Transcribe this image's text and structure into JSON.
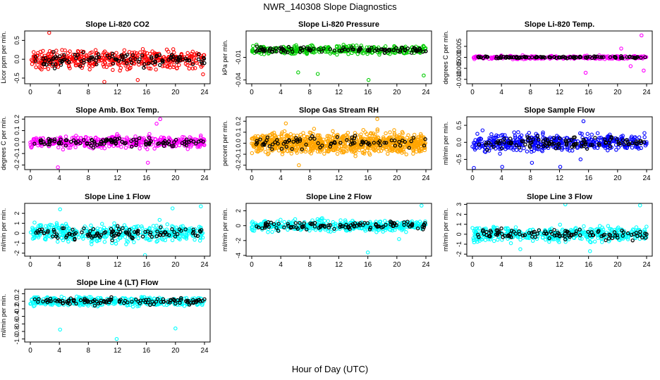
{
  "figure": {
    "title": "NWR_140308  Slope Diagnostics",
    "xlabel": "Hour of Day (UTC)"
  },
  "chart_data": [
    {
      "type": "scatter",
      "title": "Slope Li-820 CO2",
      "ylabel": "Licor ppm per min.",
      "color": "#ff0000",
      "xlim": [
        0,
        24
      ],
      "xticks": [
        0,
        4,
        8,
        12,
        16,
        20,
        24
      ],
      "ylim": [
        -0.65,
        0.75
      ],
      "yticks": [
        -0.5,
        0.0,
        0.5
      ],
      "yticklabels": [
        "-0.5",
        "0.0",
        "0.5"
      ],
      "spread": 0.22,
      "n_color": 420,
      "n_black": 110,
      "outliers": [
        {
          "x": 2.6,
          "y": 0.7
        },
        {
          "x": 10.2,
          "y": -0.6
        },
        {
          "x": 14.8,
          "y": -0.55
        },
        {
          "x": 23.8,
          "y": -0.4
        }
      ]
    },
    {
      "type": "scatter",
      "title": "Slope Li-820 Pressure",
      "ylabel": "kPa per min.",
      "color": "#00cc00",
      "xlim": [
        0,
        24
      ],
      "xticks": [
        0,
        4,
        8,
        12,
        16,
        20,
        24
      ],
      "ylim": [
        -0.045,
        0.025
      ],
      "yticks": [
        -0.04,
        -0.01
      ],
      "yticklabels": [
        "-0.04",
        "-0.01"
      ],
      "spread": 0.005,
      "n_color": 330,
      "n_black": 110,
      "outliers": [
        {
          "x": 6.4,
          "y": -0.03
        },
        {
          "x": 9.1,
          "y": -0.032
        },
        {
          "x": 16.1,
          "y": -0.04
        },
        {
          "x": 23.7,
          "y": -0.034
        },
        {
          "x": 2.3,
          "y": -0.005
        }
      ]
    },
    {
      "type": "scatter",
      "title": "Slope Li-820 Temp.",
      "ylabel": "degrees C per min.",
      "color": "#ff00ff",
      "xlim": [
        0,
        24
      ],
      "xticks": [
        0,
        4,
        8,
        12,
        16,
        20,
        24
      ],
      "ylim": [
        -0.012,
        0.012
      ],
      "yticks": [
        -0.01,
        -0.005,
        0.0,
        0.005
      ],
      "yticklabels": [
        "-0.010",
        "-0.005",
        "0.000",
        "0.005"
      ],
      "spread": 0.0006,
      "n_color": 320,
      "n_black": 110,
      "outliers": [
        {
          "x": 15.6,
          "y": -0.007
        },
        {
          "x": 23.3,
          "y": 0.01
        },
        {
          "x": 23.6,
          "y": -0.006
        },
        {
          "x": 20.5,
          "y": 0.004
        },
        {
          "x": 21.8,
          "y": -0.004
        }
      ]
    },
    {
      "type": "scatter",
      "title": "Slope Amb. Box Temp.",
      "ylabel": "degrees C per min.",
      "color": "#ff00ff",
      "xlim": [
        0,
        24
      ],
      "xticks": [
        0,
        4,
        8,
        12,
        16,
        20,
        24
      ],
      "ylim": [
        -0.24,
        0.22
      ],
      "yticks": [
        -0.2,
        -0.1,
        0.0,
        0.1,
        0.2
      ],
      "yticklabels": [
        "-0.2",
        "-0.1",
        "0.0",
        "0.1",
        "0.2"
      ],
      "spread": 0.045,
      "n_color": 420,
      "n_black": 110,
      "outliers": [
        {
          "x": 3.8,
          "y": -0.22
        },
        {
          "x": 17.9,
          "y": 0.2
        },
        {
          "x": 16.2,
          "y": -0.18
        },
        {
          "x": 17.4,
          "y": 0.16
        }
      ]
    },
    {
      "type": "scatter",
      "title": "Slope Gas Stream RH",
      "ylabel": "percent per min.",
      "color": "#ffa500",
      "xlim": [
        0,
        24
      ],
      "xticks": [
        0,
        4,
        8,
        12,
        16,
        20,
        24
      ],
      "ylim": [
        -0.24,
        0.24
      ],
      "yticks": [
        -0.2,
        -0.1,
        0.0,
        0.1,
        0.2
      ],
      "yticklabels": [
        "-0.2",
        "-0.1",
        "0.0",
        "0.1",
        "0.2"
      ],
      "spread": 0.08,
      "n_color": 900,
      "n_black": 80,
      "outliers": [
        {
          "x": 6.5,
          "y": -0.2
        },
        {
          "x": 17.3,
          "y": 0.22
        },
        {
          "x": 4.7,
          "y": 0.18
        }
      ]
    },
    {
      "type": "scatter",
      "title": "Slope Sample Flow",
      "ylabel": "ml/min per min.",
      "color": "#0000ff",
      "xlim": [
        0,
        24
      ],
      "xticks": [
        0,
        4,
        8,
        12,
        16,
        20,
        24
      ],
      "ylim": [
        -0.8,
        0.75
      ],
      "yticks": [
        -0.5,
        0.0,
        0.5
      ],
      "yticklabels": [
        "-0.5",
        "0.0",
        "0.5"
      ],
      "spread": 0.22,
      "n_color": 430,
      "n_black": 110,
      "outliers": [
        {
          "x": 0.2,
          "y": -0.75
        },
        {
          "x": 4.1,
          "y": -0.72
        },
        {
          "x": 8.2,
          "y": -0.6
        },
        {
          "x": 12.1,
          "y": -0.72
        },
        {
          "x": 15.3,
          "y": 0.62
        },
        {
          "x": 14.9,
          "y": -0.5
        }
      ]
    },
    {
      "type": "scatter",
      "title": "Slope Line 1 Flow",
      "ylabel": "ml/min per min.",
      "color": "#00ffff",
      "xlim": [
        0,
        24
      ],
      "xticks": [
        0,
        4,
        8,
        12,
        16,
        20,
        24
      ],
      "ylim": [
        -2.3,
        3.0
      ],
      "yticks": [
        -2,
        -1,
        0,
        1,
        2
      ],
      "yticklabels": [
        "-2",
        "-1",
        "0",
        "1",
        "2"
      ],
      "spread": 0.8,
      "n_color": 420,
      "n_black": 110,
      "outliers": [
        {
          "x": 15.8,
          "y": -2.2
        },
        {
          "x": 23.5,
          "y": 2.7
        },
        {
          "x": 4.1,
          "y": 2.4
        },
        {
          "x": 19.6,
          "y": 2.5
        }
      ]
    },
    {
      "type": "scatter",
      "title": "Slope Line 2 Flow",
      "ylabel": "ml/min per min.",
      "color": "#00ffff",
      "xlim": [
        0,
        24
      ],
      "xticks": [
        0,
        4,
        8,
        12,
        16,
        20,
        24
      ],
      "ylim": [
        -4.1,
        3.0
      ],
      "yticks": [
        -4,
        -2,
        0,
        2
      ],
      "yticklabels": [
        "-4",
        "-2",
        "0",
        "2"
      ],
      "spread": 0.65,
      "n_color": 420,
      "n_black": 110,
      "outliers": [
        {
          "x": 16.0,
          "y": -3.6
        },
        {
          "x": 23.4,
          "y": 2.7
        },
        {
          "x": 20.3,
          "y": -1.8
        }
      ]
    },
    {
      "type": "scatter",
      "title": "Slope Line 3 Flow",
      "ylabel": "ml/min per min.",
      "color": "#00ffff",
      "xlim": [
        0,
        24
      ],
      "xticks": [
        0,
        4,
        8,
        12,
        16,
        20,
        24
      ],
      "ylim": [
        -2.2,
        3.1
      ],
      "yticks": [
        -2,
        -1,
        0,
        1,
        2,
        3
      ],
      "yticklabels": [
        "-2",
        "-1",
        "0",
        "1",
        "2",
        "3"
      ],
      "spread": 0.65,
      "n_color": 420,
      "n_black": 110,
      "outliers": [
        {
          "x": 12.8,
          "y": 3.0
        },
        {
          "x": 23.1,
          "y": 2.9
        },
        {
          "x": 16.2,
          "y": -1.7
        },
        {
          "x": 6.6,
          "y": -1.5
        }
      ]
    },
    {
      "type": "scatter",
      "title": "Slope Line 4 (LT) Flow",
      "ylabel": "ml/min per min.",
      "color": "#00ffff",
      "xlim": [
        0,
        24
      ],
      "xticks": [
        0,
        4,
        8,
        12,
        16,
        20,
        24
      ],
      "ylim": [
        -1.08,
        0.32
      ],
      "yticks": [
        -1.0,
        -0.8,
        -0.6,
        -0.4,
        -0.2,
        0.0,
        0.2
      ],
      "yticklabels": [
        "-1.0",
        "-0.8",
        "-0.6",
        "-0.4",
        "-0.2",
        "0.0",
        "0.2"
      ],
      "spread": 0.1,
      "n_color": 420,
      "n_black": 110,
      "outliers": [
        {
          "x": 4.1,
          "y": -0.75
        },
        {
          "x": 11.9,
          "y": -1.0
        },
        {
          "x": 20.0,
          "y": -0.72
        }
      ]
    }
  ]
}
